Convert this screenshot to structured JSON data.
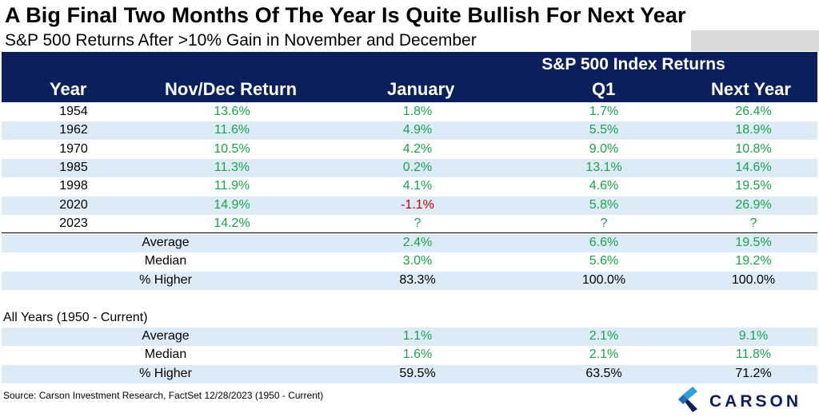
{
  "title": "A Big Final Two Months Of The Year Is Quite Bullish For Next Year",
  "subtitle": "S&P 500 Returns After >10% Gain in November and December",
  "header": {
    "group_label": "S&P 500 Index Returns",
    "columns": [
      "Year",
      "Nov/Dec Return",
      "January",
      "Q1",
      "Next Year"
    ]
  },
  "chart_data": {
    "type": "table",
    "columns": [
      "Year",
      "Nov/Dec Return",
      "January",
      "Q1",
      "Next Year"
    ],
    "rows": [
      {
        "year": "1954",
        "novdec": "13.6%",
        "jan": "1.8%",
        "q1": "1.7%",
        "next": "26.4%"
      },
      {
        "year": "1962",
        "novdec": "11.6%",
        "jan": "4.9%",
        "q1": "5.5%",
        "next": "18.9%"
      },
      {
        "year": "1970",
        "novdec": "10.5%",
        "jan": "4.2%",
        "q1": "9.0%",
        "next": "10.8%"
      },
      {
        "year": "1985",
        "novdec": "11.3%",
        "jan": "0.2%",
        "q1": "13.1%",
        "next": "14.6%"
      },
      {
        "year": "1998",
        "novdec": "11.9%",
        "jan": "4.1%",
        "q1": "4.6%",
        "next": "19.5%"
      },
      {
        "year": "2020",
        "novdec": "14.9%",
        "jan": "-1.1%",
        "q1": "5.8%",
        "next": "26.9%"
      },
      {
        "year": "2023",
        "novdec": "14.2%",
        "jan": "?",
        "q1": "?",
        "next": "?"
      }
    ],
    "summary": [
      {
        "label": "Average",
        "jan": "2.4%",
        "q1": "6.6%",
        "next": "19.5%"
      },
      {
        "label": "Median",
        "jan": "3.0%",
        "q1": "5.6%",
        "next": "19.2%"
      },
      {
        "label": "% Higher",
        "jan": "83.3%",
        "q1": "100.0%",
        "next": "100.0%"
      }
    ],
    "all_years_label": "All Years (1950 - Current)",
    "all_years": [
      {
        "label": "Average",
        "jan": "1.1%",
        "q1": "2.1%",
        "next": "9.1%"
      },
      {
        "label": "Median",
        "jan": "1.6%",
        "q1": "2.1%",
        "next": "11.8%"
      },
      {
        "label": "% Higher",
        "jan": "59.5%",
        "q1": "63.5%",
        "next": "71.2%"
      }
    ]
  },
  "source": "Source: Carson Investment Research, FactSet 12/28/2023 (1950 - Current)",
  "logo_text": "CARSON",
  "colors": {
    "header_bg": "#0a1f5c",
    "shade": "#ddebf7",
    "positive": "#1aa34a",
    "negative": "#c00000"
  }
}
